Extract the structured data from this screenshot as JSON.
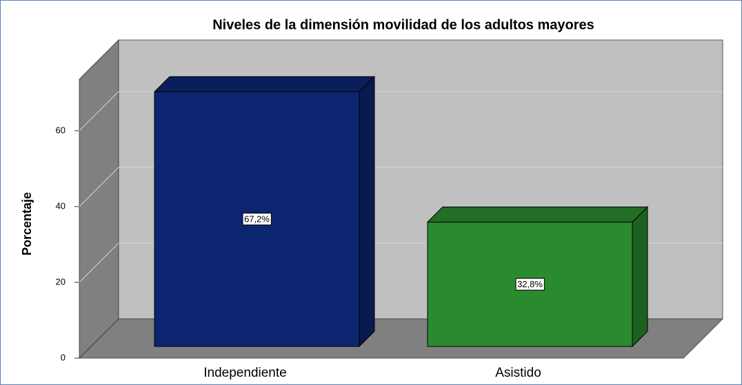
{
  "chart_data": {
    "type": "bar3d",
    "title": "Niveles de la dimensión movilidad de los adultos mayores",
    "y_label": "Porcentaje",
    "categories": [
      "Independiente",
      "Asistido"
    ],
    "values": [
      67.2,
      32.8
    ],
    "value_labels": [
      "67,2%",
      "32,8%"
    ],
    "colors": [
      "#0b2570",
      "#2a8a2e"
    ],
    "ylim": [
      0,
      73.6
    ],
    "yticks": [
      0,
      20,
      40,
      60
    ],
    "grid": true
  }
}
